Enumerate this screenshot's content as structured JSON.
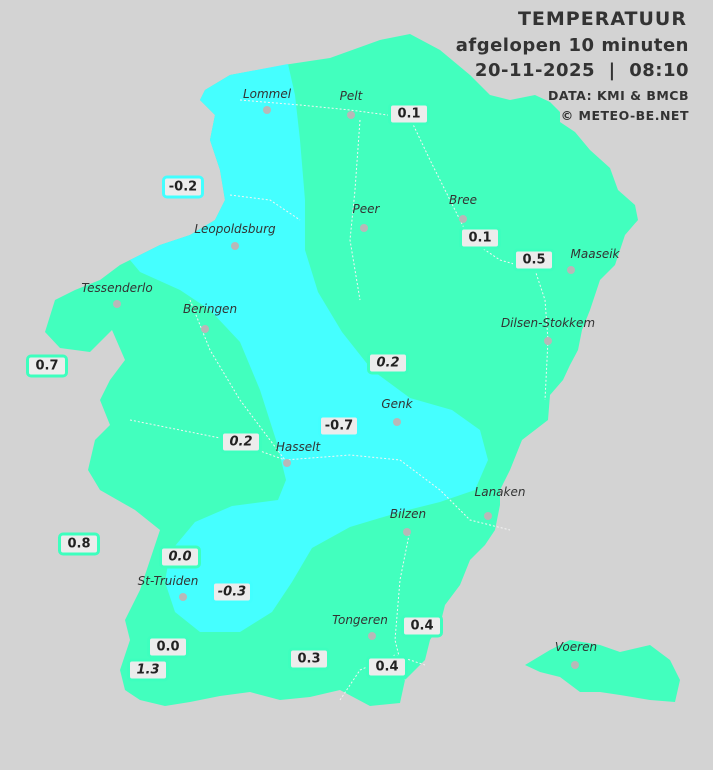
{
  "header": {
    "title": "TEMPERATUUR",
    "subtitle": "afgelopen 10 minuten",
    "datetime": "20-11-2025  |  08:10",
    "source": "DATA: KMI & BMCB",
    "copyright": "© METEO-BE.NET"
  },
  "colors": {
    "background": "#d3d3d3",
    "zone_warm": "#42ffbe",
    "zone_cold": "#45ffff",
    "label_bg": "#ececec"
  },
  "cities": [
    {
      "name": "Lommel"
    },
    {
      "name": "Pelt"
    },
    {
      "name": "Peer"
    },
    {
      "name": "Bree"
    },
    {
      "name": "Leopoldsburg"
    },
    {
      "name": "Maaseik"
    },
    {
      "name": "Tessenderlo"
    },
    {
      "name": "Beringen"
    },
    {
      "name": "Dilsen-Stokkem"
    },
    {
      "name": "Genk"
    },
    {
      "name": "Hasselt"
    },
    {
      "name": "Lanaken"
    },
    {
      "name": "Bilzen"
    },
    {
      "name": "St-Truiden"
    },
    {
      "name": "Tongeren"
    },
    {
      "name": "Voeren"
    }
  ],
  "stations": [
    {
      "value": "0.1",
      "zone": "warm",
      "italic": false
    },
    {
      "value": "-0.2",
      "zone": "cold",
      "italic": false
    },
    {
      "value": "0.1",
      "zone": "warm",
      "italic": false
    },
    {
      "value": "0.5",
      "zone": "warm",
      "italic": false
    },
    {
      "value": "0.7",
      "zone": "warm",
      "italic": false
    },
    {
      "value": "0.2",
      "zone": "warm",
      "italic": true
    },
    {
      "value": "-0.7",
      "zone": "cold",
      "italic": false
    },
    {
      "value": "0.2",
      "zone": "warm",
      "italic": true
    },
    {
      "value": "0.8",
      "zone": "warm",
      "italic": false
    },
    {
      "value": "0.0",
      "zone": "warm",
      "italic": true
    },
    {
      "value": "-0.3",
      "zone": "cold",
      "italic": true
    },
    {
      "value": "0.4",
      "zone": "warm",
      "italic": false
    },
    {
      "value": "0.0",
      "zone": "warm",
      "italic": false
    },
    {
      "value": "1.3",
      "zone": "warm",
      "italic": true
    },
    {
      "value": "0.3",
      "zone": "warm",
      "italic": false
    },
    {
      "value": "0.4",
      "zone": "warm",
      "italic": false
    }
  ]
}
